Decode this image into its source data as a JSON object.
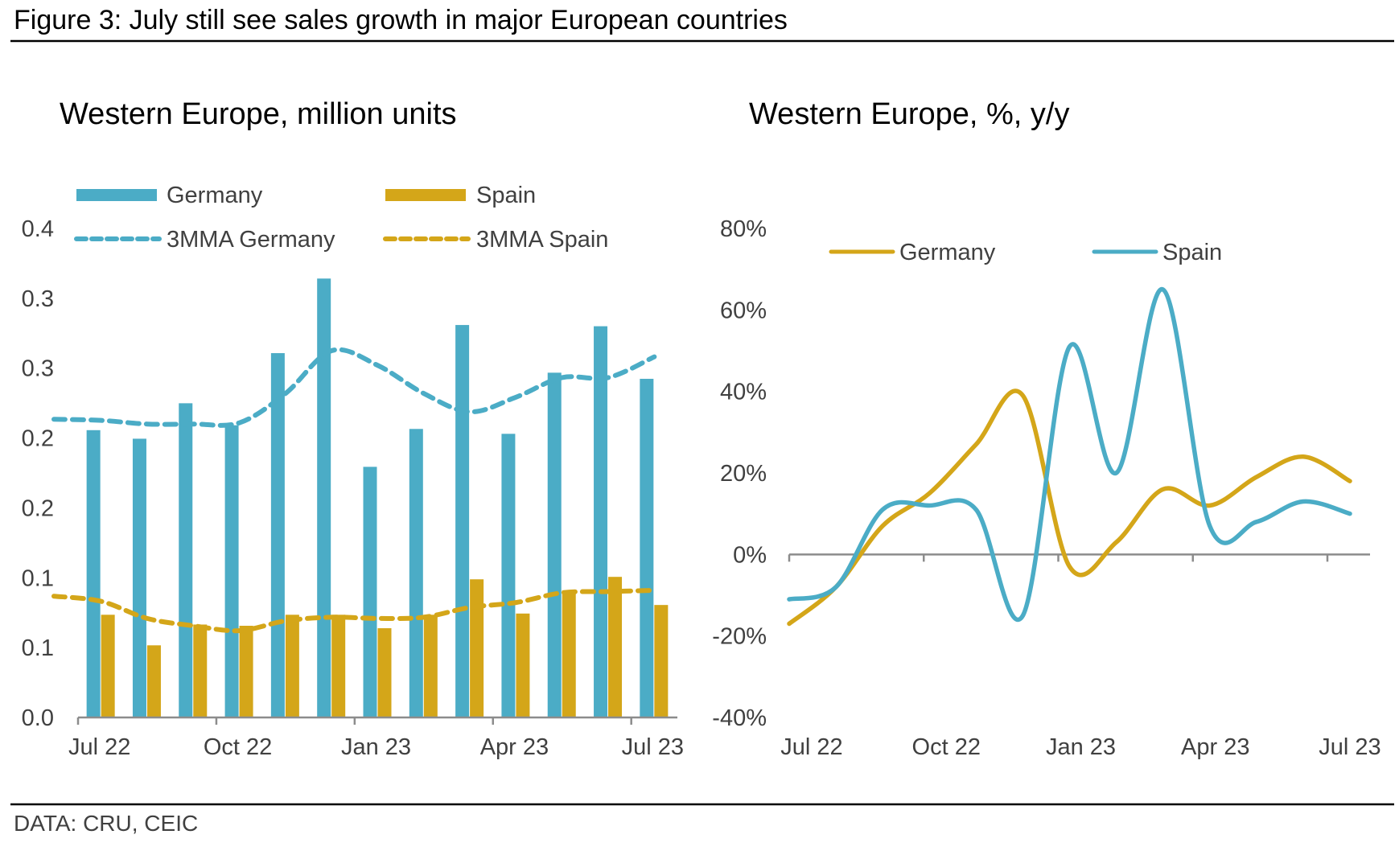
{
  "figure": {
    "title": "Figure 3: July still see sales growth in major European countries",
    "source": "DATA: CRU, CEIC"
  },
  "colors": {
    "germany_bar": "#4BACC6",
    "spain_bar": "#D4A619",
    "axis": "#8C8C8C",
    "text": "#404040"
  },
  "chart_data": [
    {
      "type": "bar",
      "title": "Western Europe, million units",
      "xlabel": "",
      "ylabel": "",
      "categories": [
        "Jul 22",
        "Aug 22",
        "Sep 22",
        "Oct 22",
        "Nov 22",
        "Dec 22",
        "Jan 23",
        "Feb 23",
        "Mar 23",
        "Apr 23",
        "May 23",
        "Jun 23",
        "Jul 23"
      ],
      "x_tick_labels": [
        "Jul 22",
        "Oct 22",
        "Jan 23",
        "Apr 23",
        "Jul 23"
      ],
      "y_tick_labels": [
        "0.0",
        "0.1",
        "0.1",
        "0.2",
        "0.2",
        "0.3",
        "0.3",
        "0.4"
      ],
      "ylim": [
        0,
        0.4
      ],
      "grid": false,
      "legend_position": "top",
      "series": [
        {
          "name": "Germany",
          "kind": "bar",
          "color": "#4BACC6",
          "values": [
            0.235,
            0.228,
            0.257,
            0.239,
            0.298,
            0.359,
            0.205,
            0.236,
            0.321,
            0.232,
            0.282,
            0.32,
            0.277
          ]
        },
        {
          "name": "Spain",
          "kind": "bar",
          "color": "#D4A619",
          "values": [
            0.084,
            0.059,
            0.076,
            0.075,
            0.084,
            0.084,
            0.073,
            0.084,
            0.113,
            0.085,
            0.104,
            0.115,
            0.092
          ]
        },
        {
          "name": "3MMA Germany",
          "kind": "dashed-line",
          "color": "#4BACC6",
          "values": [
            0.243,
            0.24,
            0.24,
            0.241,
            0.265,
            0.3,
            0.288,
            0.265,
            0.25,
            0.262,
            0.278,
            0.278,
            0.295
          ]
        },
        {
          "name": "3MMA Spain",
          "kind": "dashed-line",
          "color": "#D4A619",
          "values": [
            0.095,
            0.081,
            0.075,
            0.071,
            0.079,
            0.082,
            0.081,
            0.082,
            0.09,
            0.094,
            0.102,
            0.103,
            0.104
          ]
        }
      ]
    },
    {
      "type": "line",
      "title": "Western Europe, %, y/y",
      "xlabel": "",
      "ylabel": "",
      "x": [
        "Jul 22",
        "Aug 22",
        "Sep 22",
        "Oct 22",
        "Nov 22",
        "Dec 22",
        "Jan 23",
        "Feb 23",
        "Mar 23",
        "Apr 23",
        "May 23",
        "Jun 23",
        "Jul 23"
      ],
      "x_tick_labels": [
        "Jul 22",
        "Oct 22",
        "Jan 23",
        "Apr 23",
        "Jul 23"
      ],
      "y_tick_labels": [
        "-40%",
        "-20%",
        "0%",
        "20%",
        "40%",
        "60%",
        "80%"
      ],
      "ylim": [
        -40,
        80
      ],
      "grid": false,
      "legend_position": "top",
      "series": [
        {
          "name": "Germany",
          "color": "#D4A619",
          "values": [
            -17,
            -8,
            7,
            15,
            27,
            39,
            -3,
            3,
            16,
            12,
            19,
            24,
            18
          ]
        },
        {
          "name": "Spain",
          "color": "#4BACC6",
          "values": [
            -11,
            -8,
            11,
            12,
            11,
            -15,
            51,
            20,
            65,
            7,
            8,
            13,
            10
          ]
        }
      ]
    }
  ]
}
